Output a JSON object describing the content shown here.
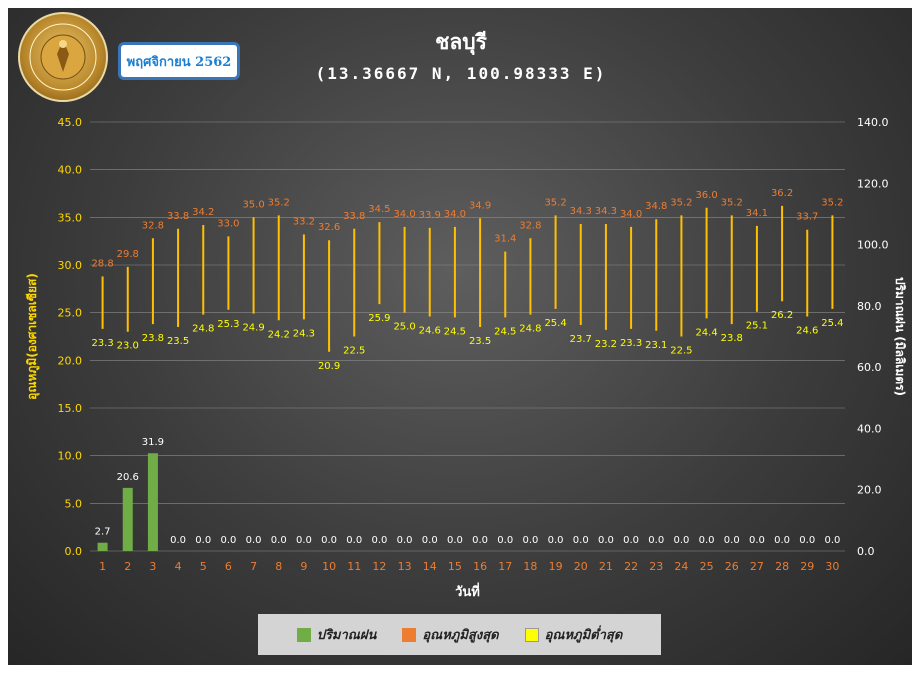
{
  "header": {
    "title": "ชลบุรี",
    "subtitle": "(13.36667 N, 100.98333 E)",
    "month_label": "พฤศจิกายน 2562",
    "logo_text": "METEOROLOGICAL DEPARTMENT"
  },
  "colors": {
    "rain": "#70ad47",
    "temp_range": "#ffc000",
    "max_label": "#ed7d31",
    "min_label": "#ffff00",
    "axis_left": "#ffd700",
    "axis_right": "#ffffff",
    "x_ticks": "#ed7d31",
    "grid": "#8a8a8a"
  },
  "legend": {
    "rain": "ปริมาณฝน",
    "max": "อุณหภูมิสูงสุด",
    "min": "อุณหภูมิต่ำสุด"
  },
  "chart_data": {
    "type": "bar",
    "xlabel": "วันที่",
    "ylabel_left": "อุณหภูมิ(องศาเซลเซียส)",
    "ylabel_right": "ปริมาณฝน (มิลลิเมตร)",
    "ylim_left": [
      0,
      45
    ],
    "ylim_right": [
      0,
      140
    ],
    "yticks_left": [
      "0.0",
      "5.0",
      "10.0",
      "15.0",
      "20.0",
      "25.0",
      "30.0",
      "35.0",
      "40.0",
      "45.0"
    ],
    "yticks_right": [
      "0.0",
      "20.0",
      "40.0",
      "60.0",
      "80.0",
      "100.0",
      "120.0",
      "140.0"
    ],
    "grid": true,
    "legend_position": "bottom",
    "categories": [
      "1",
      "2",
      "3",
      "4",
      "5",
      "6",
      "7",
      "8",
      "9",
      "10",
      "11",
      "12",
      "13",
      "14",
      "15",
      "16",
      "17",
      "18",
      "19",
      "20",
      "21",
      "22",
      "23",
      "24",
      "25",
      "26",
      "27",
      "28",
      "29",
      "30"
    ],
    "series": [
      {
        "name": "ปริมาณฝน",
        "axis": "right",
        "values": [
          2.7,
          20.6,
          31.9,
          0.0,
          0.0,
          0.0,
          0.0,
          0.0,
          0.0,
          0.0,
          0.0,
          0.0,
          0.0,
          0.0,
          0.0,
          0.0,
          0.0,
          0.0,
          0.0,
          0.0,
          0.0,
          0.0,
          0.0,
          0.0,
          0.0,
          0.0,
          0.0,
          0.0,
          0.0,
          0.0
        ],
        "labels": [
          "2.7",
          "20.6",
          "31.9",
          "0.0",
          "0.0",
          "0.0",
          "0.0",
          "0.0",
          "0.0",
          "0.0",
          "0.0",
          "0.0",
          "0.0",
          "0.0",
          "0.0",
          "0.0",
          "0.0",
          "0.0",
          "0.0",
          "0.0",
          "0.0",
          "0.0",
          "0.0",
          "0.0",
          "0.0",
          "0.0",
          "0.0",
          "0.0",
          "0.0",
          "0.0"
        ]
      },
      {
        "name": "อุณหภูมิสูงสุด",
        "axis": "left",
        "values": [
          28.8,
          29.8,
          32.8,
          33.8,
          34.2,
          33.0,
          35.0,
          35.2,
          33.2,
          32.6,
          33.8,
          34.5,
          34.0,
          33.9,
          34.0,
          34.9,
          31.4,
          32.8,
          35.2,
          34.3,
          34.3,
          34.0,
          34.8,
          35.2,
          36.0,
          35.2,
          34.1,
          36.2,
          33.7,
          35.2
        ],
        "labels": [
          "28.8",
          "29.8",
          "32.8",
          "33.8",
          "34.2",
          "33.0",
          "35.0",
          "35.2",
          "33.2",
          "32.6",
          "33.8",
          "34.5",
          "34.0",
          "33.9",
          "34.0",
          "34.9",
          "31.4",
          "32.8",
          "35.2",
          "34.3",
          "34.3",
          "34.0",
          "34.8",
          "35.2",
          "36.0",
          "35.2",
          "34.1",
          "36.2",
          "33.7",
          "35.2"
        ]
      },
      {
        "name": "อุณหภูมิต่ำสุด",
        "axis": "left",
        "values": [
          23.3,
          23.0,
          23.8,
          23.5,
          24.8,
          25.3,
          24.9,
          24.2,
          24.3,
          20.9,
          22.5,
          25.9,
          25.0,
          24.6,
          24.5,
          23.5,
          24.5,
          24.8,
          25.4,
          23.7,
          23.2,
          23.3,
          23.1,
          22.5,
          24.4,
          23.8,
          25.1,
          26.2,
          24.6,
          25.4
        ],
        "labels": [
          "23.3",
          "23.0",
          "23.8",
          "23.5",
          "24.8",
          "25.3",
          "24.9",
          "24.2",
          "24.3",
          "20.9",
          "22.5",
          "25.9",
          "25.0",
          "24.6",
          "24.5",
          "23.5",
          "24.5",
          "24.8",
          "25.4",
          "23.7",
          "23.2",
          "23.3",
          "23.1",
          "22.5",
          "24.4",
          "23.8",
          "25.1",
          "26.2",
          "24.6",
          "25.4"
        ]
      }
    ]
  }
}
